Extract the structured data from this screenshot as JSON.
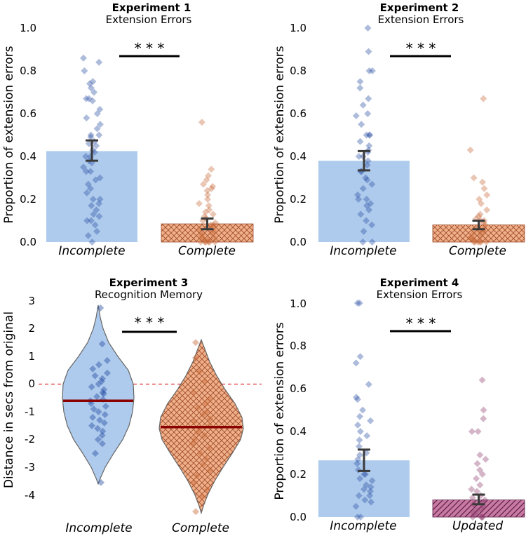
{
  "chart_data": [
    {
      "type": "bar",
      "title": "Experiment 1",
      "subtitle": "Extension Errors",
      "ylabel": "Proportion of extension errors",
      "ylim": [
        0,
        1.0
      ],
      "yticks": [
        "0.0",
        "0.2",
        "0.4",
        "0.6",
        "0.8",
        "1.0"
      ],
      "categories": [
        "Incomplete",
        "Complete"
      ],
      "values": [
        0.425,
        0.085
      ],
      "errors": [
        [
          0.38,
          0.475
        ],
        [
          0.06,
          0.11
        ]
      ],
      "significance": "* * *",
      "points": [
        [
          0.86,
          0.84,
          0.8,
          0.75,
          0.74,
          0.72,
          0.7,
          0.67,
          0.67,
          0.66,
          0.62,
          0.6,
          0.58,
          0.55,
          0.53,
          0.5,
          0.5,
          0.49,
          0.47,
          0.46,
          0.45,
          0.43,
          0.42,
          0.4,
          0.4,
          0.38,
          0.37,
          0.35,
          0.33,
          0.33,
          0.3,
          0.29,
          0.27,
          0.25,
          0.23,
          0.2,
          0.2,
          0.18,
          0.17,
          0.15,
          0.13,
          0.12,
          0.1,
          0.1,
          0.08,
          0.05,
          0.03,
          0.0
        ],
        [
          0.56,
          0.34,
          0.31,
          0.29,
          0.27,
          0.26,
          0.25,
          0.24,
          0.22,
          0.2,
          0.18,
          0.17,
          0.15,
          0.14,
          0.13,
          0.12,
          0.11,
          0.1,
          0.09,
          0.08,
          0.08,
          0.07,
          0.06,
          0.06,
          0.05,
          0.04,
          0.04,
          0.03,
          0.02,
          0.02,
          0.01,
          0.01,
          0.0,
          0.0,
          0.0,
          0.0,
          0.0,
          0.0
        ]
      ]
    },
    {
      "type": "bar",
      "title": "Experiment 2",
      "subtitle": "Extension Errors",
      "ylabel": "Proportion of extension errors",
      "ylim": [
        0,
        1.0
      ],
      "yticks": [
        "0.0",
        "0.2",
        "0.4",
        "0.6",
        "0.8",
        "1.0"
      ],
      "categories": [
        "Incomplete",
        "Complete"
      ],
      "values": [
        0.38,
        0.08
      ],
      "errors": [
        [
          0.335,
          0.425
        ],
        [
          0.06,
          0.1
        ]
      ],
      "significance": "* * *",
      "points": [
        [
          1.0,
          0.89,
          0.8,
          0.8,
          0.75,
          0.72,
          0.67,
          0.64,
          0.6,
          0.59,
          0.55,
          0.5,
          0.5,
          0.5,
          0.47,
          0.45,
          0.43,
          0.42,
          0.4,
          0.4,
          0.38,
          0.36,
          0.33,
          0.33,
          0.3,
          0.29,
          0.27,
          0.25,
          0.22,
          0.2,
          0.2,
          0.18,
          0.17,
          0.15,
          0.13,
          0.1,
          0.08,
          0.05,
          0.0,
          0.0
        ],
        [
          0.67,
          0.43,
          0.3,
          0.28,
          0.25,
          0.22,
          0.2,
          0.18,
          0.15,
          0.13,
          0.12,
          0.11,
          0.1,
          0.1,
          0.09,
          0.08,
          0.07,
          0.06,
          0.05,
          0.05,
          0.04,
          0.03,
          0.02,
          0.02,
          0.01,
          0.0,
          0.0,
          0.0,
          0.0,
          0.0,
          0.0
        ]
      ]
    },
    {
      "type": "violin",
      "title": "Experiment 3",
      "subtitle": "Recognition Memory",
      "ylabel": "Distance in secs from original",
      "ylim": [
        -4.6,
        3.2
      ],
      "yticks": [
        "-4",
        "-3",
        "-2",
        "-1",
        "0",
        "1",
        "2",
        "3"
      ],
      "categories": [
        "Incomplete",
        "Complete"
      ],
      "means": [
        -0.6,
        -1.55
      ],
      "reference_line": 0,
      "significance": "* * *",
      "points": [
        [
          2.75,
          1.45,
          0.85,
          0.7,
          0.55,
          0.4,
          0.3,
          0.2,
          0.1,
          0.0,
          -0.1,
          -0.2,
          -0.3,
          -0.35,
          -0.45,
          -0.55,
          -0.6,
          -0.7,
          -0.8,
          -0.9,
          -1.0,
          -1.1,
          -1.2,
          -1.3,
          -1.4,
          -1.5,
          -1.6,
          -1.7,
          -1.85,
          -2.0,
          -2.15,
          -2.5,
          -3.55
        ],
        [
          1.5,
          0.95,
          0.45,
          0.1,
          -0.3,
          -0.55,
          -0.7,
          -0.85,
          -1.0,
          -1.1,
          -1.25,
          -1.35,
          -1.5,
          -1.6,
          -1.75,
          -1.85,
          -2.0,
          -2.15,
          -2.3,
          -2.5,
          -2.7,
          -2.9,
          -3.1,
          -3.3,
          -3.55,
          -3.8,
          -4.05,
          -4.6
        ]
      ]
    },
    {
      "type": "bar",
      "title": "Experiment 4",
      "subtitle": "Extension Errors",
      "ylabel": "Proportion of extension errors",
      "ylim": [
        0,
        1.0
      ],
      "yticks": [
        "0.0",
        "0.2",
        "0.4",
        "0.6",
        "0.8",
        "1.0"
      ],
      "categories": [
        "Incomplete",
        "Updated"
      ],
      "values": [
        0.265,
        0.08
      ],
      "errors": [
        [
          0.215,
          0.315
        ],
        [
          0.06,
          0.105
        ]
      ],
      "significance": "* * *",
      "points": [
        [
          1.0,
          1.0,
          0.75,
          0.72,
          0.62,
          0.56,
          0.55,
          0.5,
          0.47,
          0.45,
          0.43,
          0.4,
          0.38,
          0.36,
          0.33,
          0.3,
          0.29,
          0.27,
          0.25,
          0.22,
          0.2,
          0.2,
          0.18,
          0.17,
          0.15,
          0.14,
          0.13,
          0.12,
          0.1,
          0.1,
          0.08,
          0.07,
          0.05,
          0.0,
          0.0
        ],
        [
          0.64,
          0.5,
          0.46,
          0.4,
          0.4,
          0.29,
          0.27,
          0.25,
          0.22,
          0.2,
          0.18,
          0.15,
          0.13,
          0.12,
          0.1,
          0.09,
          0.08,
          0.07,
          0.06,
          0.05,
          0.04,
          0.03,
          0.02,
          0.01,
          0.0,
          0.0,
          0.0,
          0.0
        ]
      ]
    }
  ],
  "colors": {
    "blue_fill": "#aecbed",
    "blue_point": "#2b4fa3",
    "orange_fill": "#f0b08a",
    "orange_hatch": "#9c4a28",
    "orange_point": "#c86a3a",
    "purple_fill": "#c97aa3",
    "purple_hatch": "#5b1f46",
    "purple_point": "#8f3f6e",
    "error_bar": "#3a3a3a",
    "mean_line": "#8b0000",
    "reference_line": "#e03030"
  }
}
